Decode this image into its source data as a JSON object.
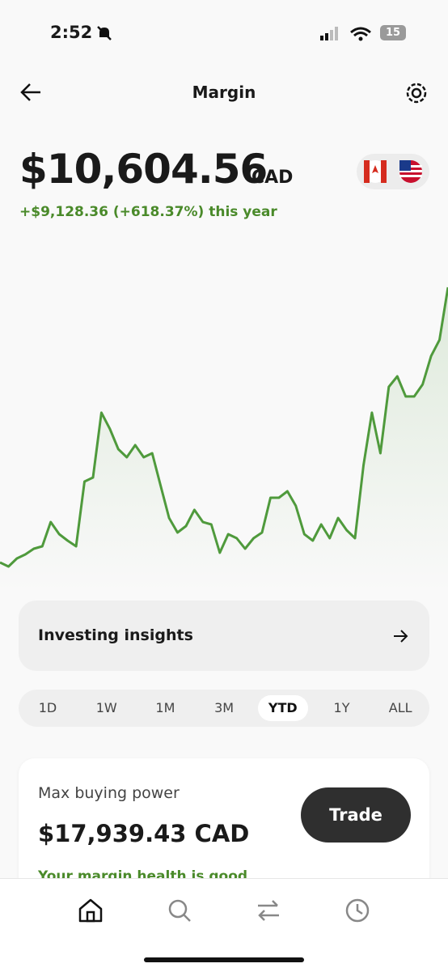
{
  "status": {
    "time": "2:52",
    "battery": "15"
  },
  "header": {
    "title": "Margin"
  },
  "balance": {
    "amount": "$10,604.56",
    "currency": "CAD",
    "change": "+$9,128.36 (+618.37%) this year"
  },
  "chart_data": {
    "type": "line",
    "color": "#4f9a3c",
    "values": [
      1529,
      1396,
      1663,
      1796,
      1983,
      2063,
      2864,
      2464,
      2250,
      2063,
      4199,
      4333,
      6469,
      5935,
      5267,
      5000,
      5401,
      5000,
      5134,
      4066,
      2998,
      2517,
      2731,
      3265,
      2864,
      2784,
      1850,
      2464,
      2330,
      1983,
      2330,
      2517,
      3665,
      3665,
      3879,
      3398,
      2464,
      2250,
      2784,
      2330,
      2998,
      2597,
      2330,
      4733,
      6469,
      5134,
      7323,
      7670,
      7003,
      7003,
      7403,
      8338,
      8872,
      10605
    ]
  },
  "insights": {
    "label": "Investing insights"
  },
  "periods": {
    "options": [
      "1D",
      "1W",
      "1M",
      "3M",
      "YTD",
      "1Y",
      "ALL"
    ],
    "selected": 4
  },
  "buying_power": {
    "label": "Max buying power",
    "amount": "$17,939.43 CAD",
    "button": "Trade",
    "health": "Your margin health is good"
  }
}
